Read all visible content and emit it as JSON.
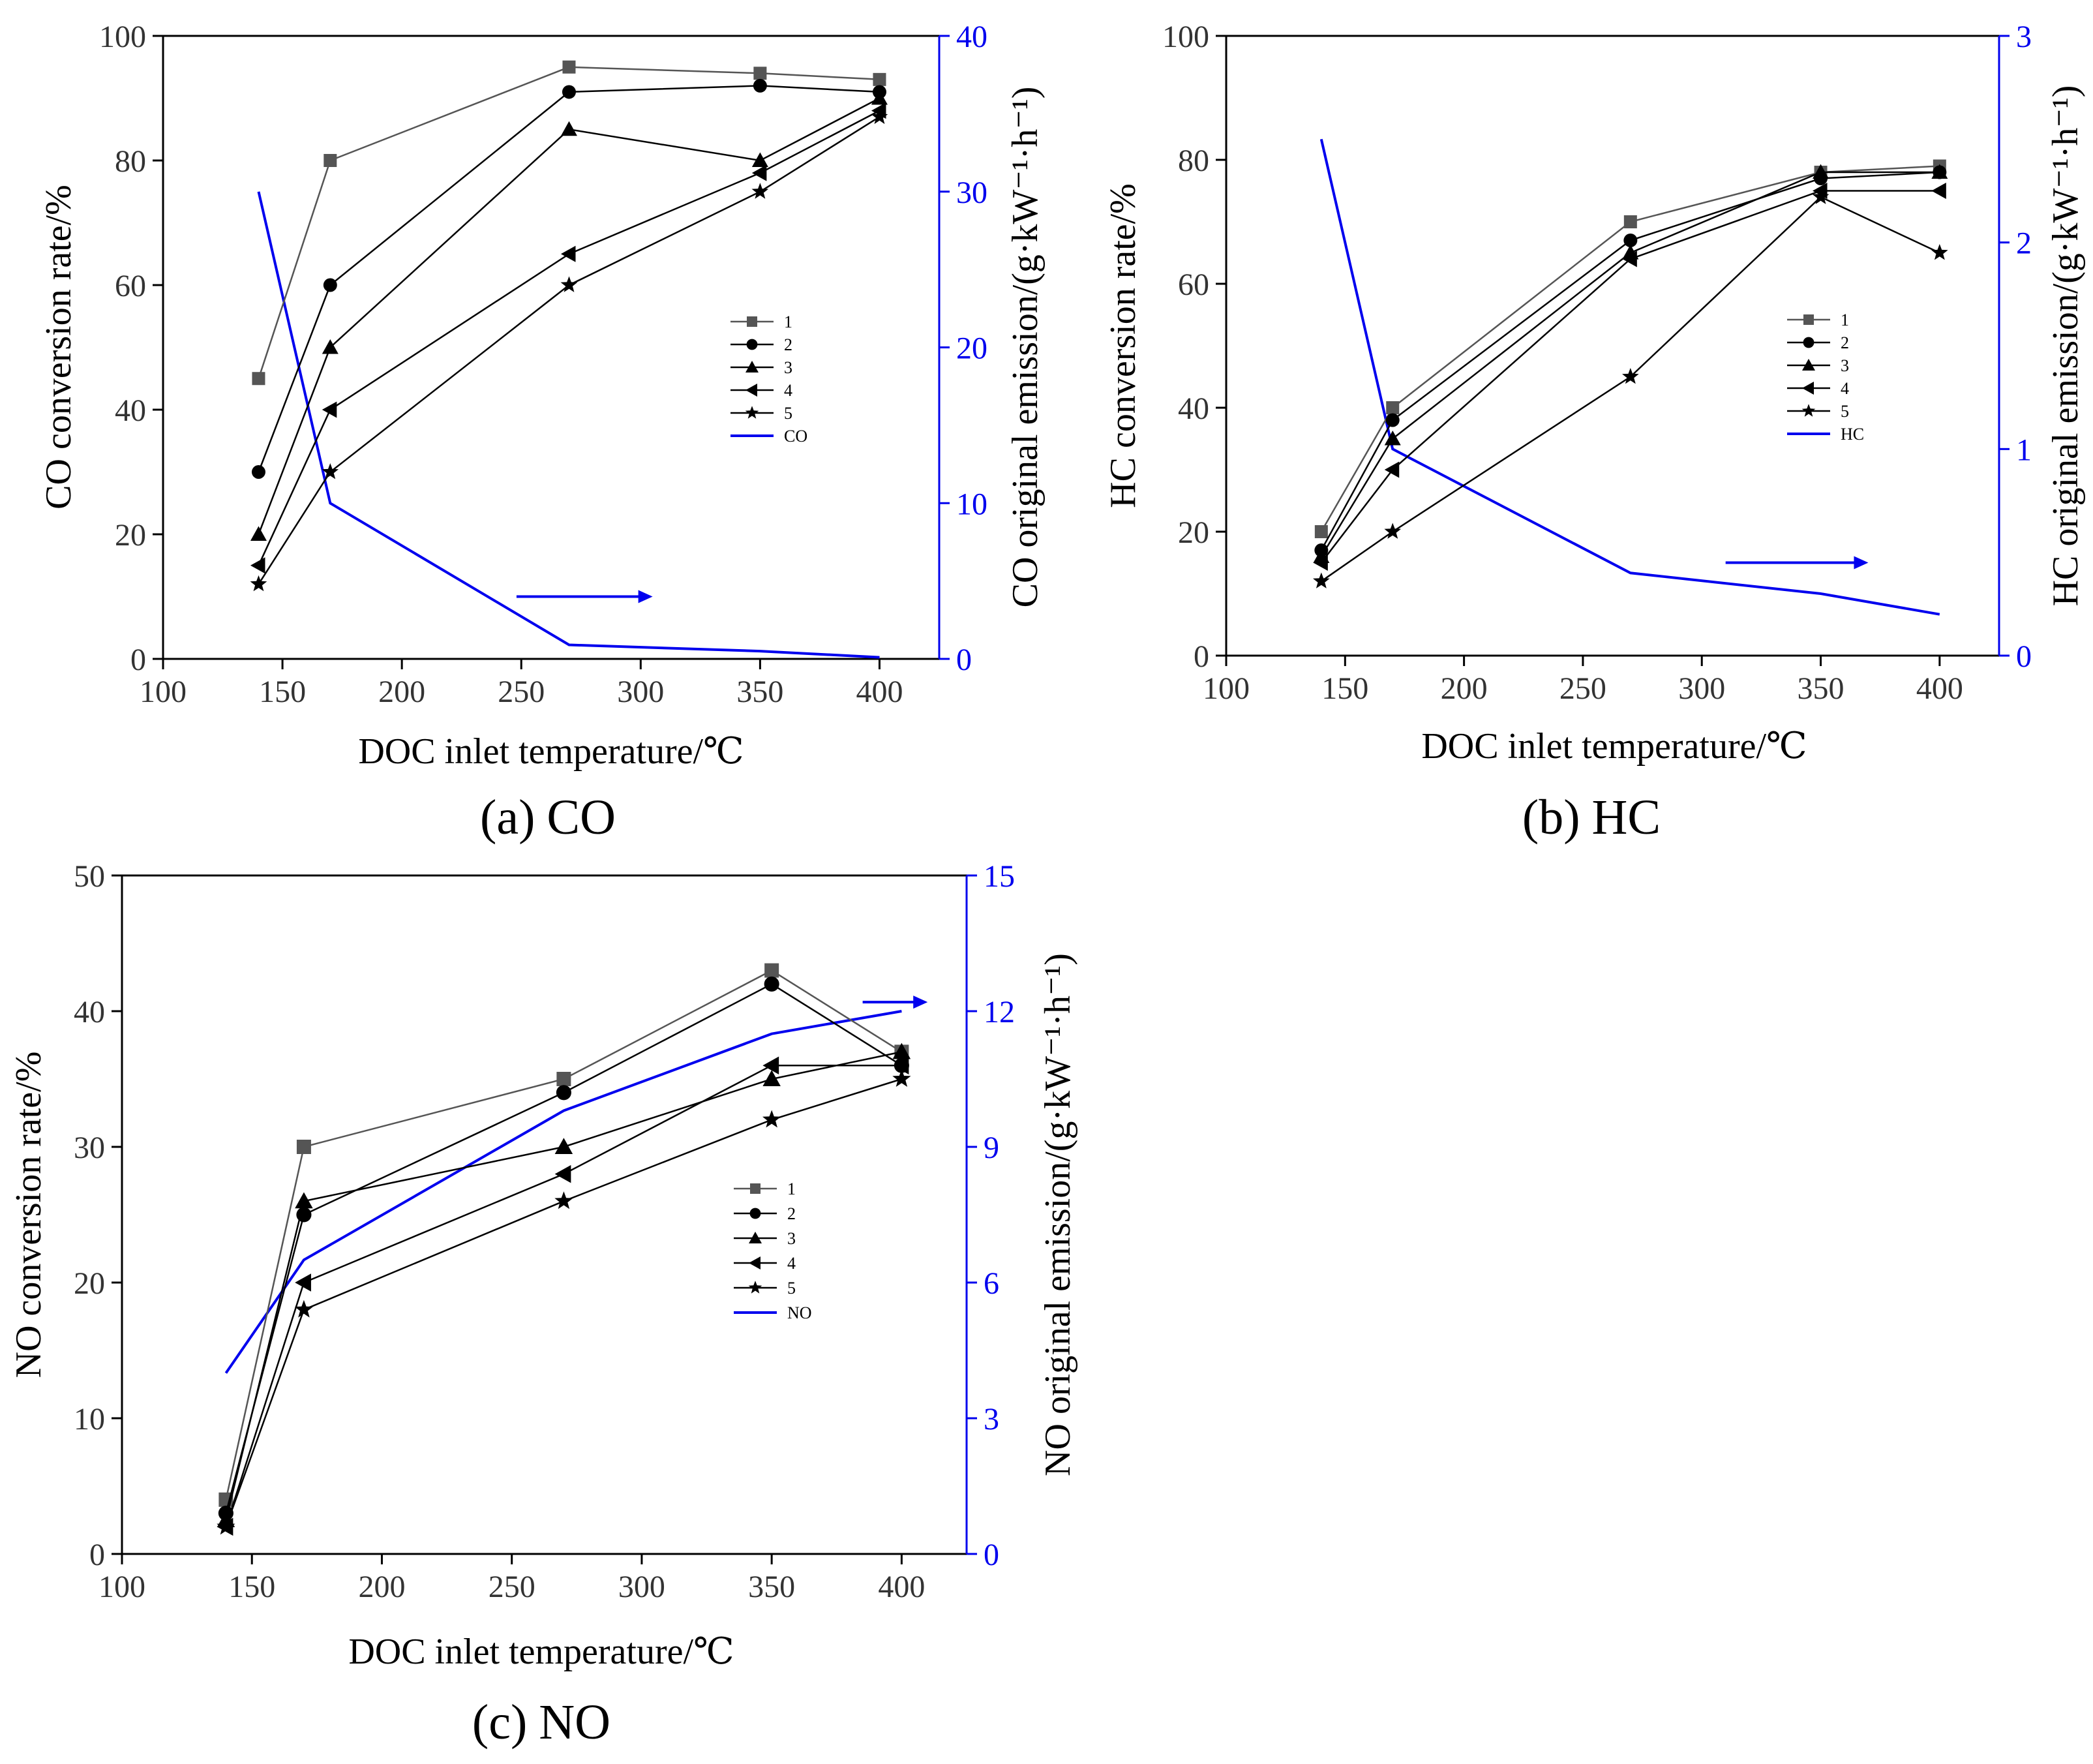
{
  "colors": {
    "series": "#000000",
    "series_1": "#555555",
    "emission": "#0000ee",
    "axis": "#000000",
    "tick_text": "#333333"
  },
  "chart_data": [
    {
      "type": "line",
      "id": "co",
      "panel_label": "(a)",
      "caption": "CO",
      "xlabel": "DOC inlet temperature/℃",
      "ylabel_left": "CO conversion rate/%",
      "ylabel_right": "CO original emission/(g·kW⁻¹·h⁻¹)",
      "xlim": [
        100,
        425
      ],
      "xticks": [
        100,
        150,
        200,
        250,
        300,
        350,
        400
      ],
      "ylim_left": [
        0,
        100
      ],
      "yticks_left": [
        0,
        20,
        40,
        60,
        80,
        100
      ],
      "ylim_right": [
        0,
        40
      ],
      "yticks_right": [
        0,
        10,
        20,
        30,
        40
      ],
      "x": [
        140,
        170,
        270,
        350,
        400
      ],
      "series": [
        {
          "name": "1",
          "marker": "square",
          "values": [
            45,
            80,
            95,
            94,
            93
          ]
        },
        {
          "name": "2",
          "marker": "circle",
          "values": [
            30,
            60,
            91,
            92,
            91
          ]
        },
        {
          "name": "3",
          "marker": "triangle-up",
          "values": [
            20,
            50,
            85,
            80,
            90
          ]
        },
        {
          "name": "4",
          "marker": "triangle-left",
          "values": [
            15,
            40,
            65,
            78,
            88
          ]
        },
        {
          "name": "5",
          "marker": "star",
          "values": [
            12,
            30,
            60,
            75,
            87
          ]
        }
      ],
      "emission": {
        "name": "CO",
        "values": [
          30,
          10,
          0.9,
          0.5,
          0.1
        ]
      },
      "arrow": {
        "x_from": 248,
        "x_to": 305,
        "y_right": 4
      },
      "legend_placement": "center-right"
    },
    {
      "type": "line",
      "id": "hc",
      "panel_label": "(b)",
      "caption": "HC",
      "xlabel": "DOC inlet temperature/℃",
      "ylabel_left": "HC conversion rate/%",
      "ylabel_right": "HC original emission/(g·kW⁻¹·h⁻¹)",
      "xlim": [
        100,
        425
      ],
      "xticks": [
        100,
        150,
        200,
        250,
        300,
        350,
        400
      ],
      "ylim_left": [
        0,
        100
      ],
      "yticks_left": [
        0,
        20,
        40,
        60,
        80,
        100
      ],
      "ylim_right": [
        0,
        3
      ],
      "yticks_right": [
        0,
        1,
        2,
        3
      ],
      "x": [
        140,
        170,
        270,
        350,
        400
      ],
      "series": [
        {
          "name": "1",
          "marker": "square",
          "values": [
            20,
            40,
            70,
            78,
            79
          ]
        },
        {
          "name": "2",
          "marker": "circle",
          "values": [
            17,
            38,
            67,
            77,
            78
          ]
        },
        {
          "name": "3",
          "marker": "triangle-up",
          "values": [
            16,
            35,
            65,
            78,
            78
          ]
        },
        {
          "name": "4",
          "marker": "triangle-left",
          "values": [
            15,
            30,
            64,
            75,
            75
          ]
        },
        {
          "name": "5",
          "marker": "star",
          "values": [
            12,
            20,
            45,
            74,
            65
          ]
        }
      ],
      "emission": {
        "name": "HC",
        "values": [
          2.5,
          1.0,
          0.4,
          0.3,
          0.2
        ]
      },
      "arrow": {
        "x_from": 310,
        "x_to": 370,
        "y_right": 0.45
      },
      "legend_placement": "center-right"
    },
    {
      "type": "line",
      "id": "no",
      "panel_label": "(c)",
      "caption": "NO",
      "xlabel": "DOC inlet temperature/℃",
      "ylabel_left": "NO conversion rate/%",
      "ylabel_right": "NO original emission/(g·kW⁻¹·h⁻¹)",
      "xlim": [
        100,
        425
      ],
      "xticks": [
        100,
        150,
        200,
        250,
        300,
        350,
        400
      ],
      "ylim_left": [
        0,
        50
      ],
      "yticks_left": [
        0,
        10,
        20,
        30,
        40,
        50
      ],
      "ylim_right": [
        0,
        15
      ],
      "yticks_right": [
        0,
        3,
        6,
        9,
        12,
        15
      ],
      "x": [
        140,
        170,
        270,
        350,
        400
      ],
      "series": [
        {
          "name": "1",
          "marker": "square",
          "values": [
            4,
            30,
            35,
            43,
            37
          ]
        },
        {
          "name": "2",
          "marker": "circle",
          "values": [
            3,
            25,
            34,
            42,
            36
          ]
        },
        {
          "name": "3",
          "marker": "triangle-up",
          "values": [
            2.5,
            26,
            30,
            35,
            37
          ]
        },
        {
          "name": "4",
          "marker": "triangle-left",
          "values": [
            2,
            20,
            28,
            36,
            36
          ]
        },
        {
          "name": "5",
          "marker": "star",
          "values": [
            2,
            18,
            26,
            32,
            35
          ]
        }
      ],
      "emission": {
        "name": "NO",
        "values": [
          4,
          6.5,
          9.8,
          11.5,
          12
        ]
      },
      "arrow": {
        "x_from": 385,
        "x_to": 410,
        "y_right": 12.2
      },
      "legend_placement": "center-right"
    }
  ]
}
